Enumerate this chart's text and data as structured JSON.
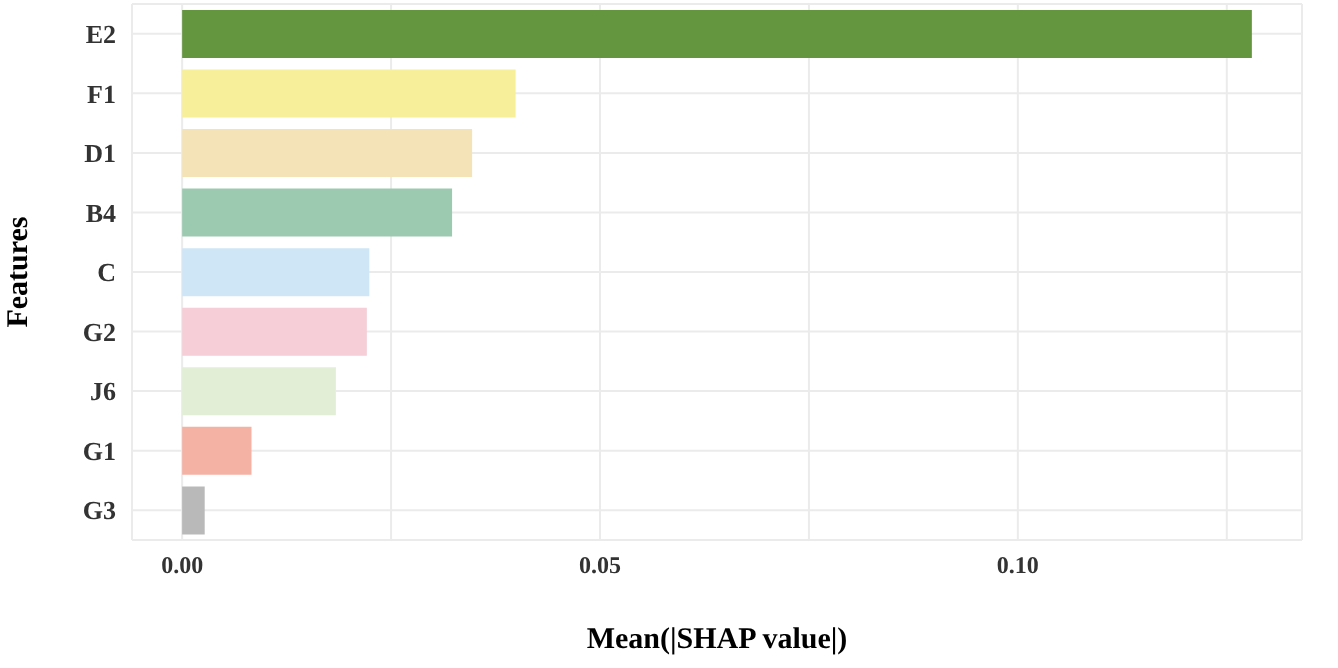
{
  "chart_data": {
    "type": "bar",
    "orientation": "horizontal",
    "xlabel": "Mean(|SHAP value|)",
    "ylabel": "Features",
    "categories": [
      "E2",
      "F1",
      "D1",
      "B4",
      "C",
      "G2",
      "J6",
      "G1",
      "G3"
    ],
    "values": [
      0.128,
      0.0399,
      0.0347,
      0.0323,
      0.0224,
      0.0221,
      0.0184,
      0.0083,
      0.0027
    ],
    "colors": [
      "#63963f",
      "#f7ef99",
      "#f5e3b8",
      "#9ccab0",
      "#cfe6f7",
      "#f5ced7",
      "#e2efd6",
      "#f4b2a5",
      "#b9b9ba"
    ],
    "xlim": [
      -0.006,
      0.134
    ],
    "xticks": [
      {
        "value": 0,
        "label": "0.00"
      },
      {
        "value": 0.025,
        "label": null
      },
      {
        "value": 0.05,
        "label": "0.05"
      },
      {
        "value": 0.075,
        "label": null
      },
      {
        "value": 0.1,
        "label": "0.10"
      },
      {
        "value": 0.125,
        "label": null
      }
    ],
    "grid": true
  }
}
